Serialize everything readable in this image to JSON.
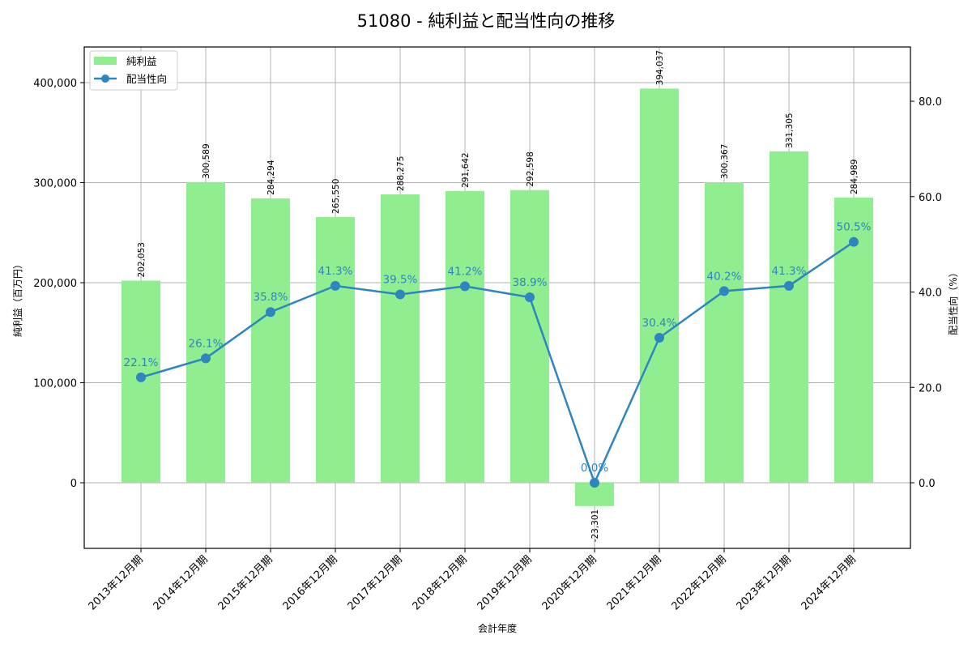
{
  "chart_data": {
    "type": "bar+line",
    "title": "51080 - 純利益と配当性向の推移",
    "xlabel": "会計年度",
    "ylabel_left": "純利益（百万円）",
    "ylabel_right": "配当性向（%）",
    "categories": [
      "2013年12月期",
      "2014年12月期",
      "2015年12月期",
      "2016年12月期",
      "2017年12月期",
      "2018年12月期",
      "2019年12月期",
      "2020年12月期",
      "2021年12月期",
      "2022年12月期",
      "2023年12月期",
      "2024年12月期"
    ],
    "series": [
      {
        "name": "純利益",
        "type": "bar",
        "axis": "left",
        "color": "#90ee90",
        "values": [
          202053,
          300589,
          284294,
          265550,
          288275,
          291642,
          292598,
          -23301,
          394037,
          300367,
          331305,
          284989
        ],
        "labels": [
          "202,053",
          "300,589",
          "284,294",
          "265,550",
          "288,275",
          "291,642",
          "292,598",
          "-23,301",
          "394,037",
          "300,367",
          "331,305",
          "284,989"
        ]
      },
      {
        "name": "配当性向",
        "type": "line",
        "axis": "right",
        "color": "#2e86c1",
        "values": [
          22.1,
          26.1,
          35.8,
          41.3,
          39.5,
          41.2,
          38.9,
          0.0,
          30.4,
          40.2,
          41.3,
          50.5
        ],
        "labels": [
          "22.1%",
          "26.1%",
          "35.8%",
          "41.3%",
          "39.5%",
          "41.2%",
          "38.9%",
          "0.0%",
          "30.4%",
          "40.2%",
          "41.3%",
          "50.5%"
        ]
      }
    ],
    "ylim_left": [
      -66000,
      435000
    ],
    "ylim_right": [
      -13.7,
      71.5
    ],
    "yticks_left": [
      0,
      100000,
      200000,
      300000,
      400000
    ],
    "yticks_left_labels": [
      "0",
      "100,000",
      "200,000",
      "300,000",
      "400,000"
    ],
    "yticks_right": [
      0,
      20,
      40,
      60,
      80
    ],
    "yticks_right_labels": [
      "0.0",
      "20.0",
      "40.0",
      "60.0",
      "80.0"
    ],
    "grid": true,
    "legend_position": "upper left",
    "legend": [
      {
        "label": "純利益",
        "kind": "bar"
      },
      {
        "label": "配当性向",
        "kind": "line-marker"
      }
    ]
  }
}
